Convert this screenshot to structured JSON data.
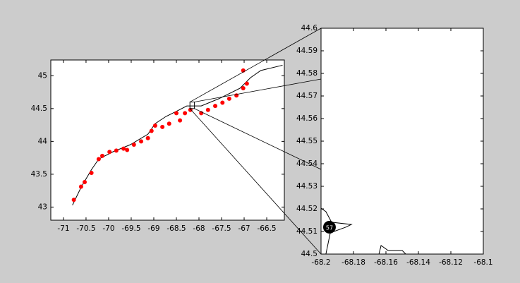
{
  "chart_data": [
    {
      "type": "map",
      "xlim": [
        -71.28,
        -66.11
      ],
      "ylim": [
        42.8,
        45.24
      ],
      "xticks": [
        -71,
        -70.5,
        -70,
        -69.5,
        -69,
        -68.5,
        -68,
        -67.5,
        -67,
        -66.5
      ],
      "yticks": [
        43,
        43.5,
        44,
        44.5,
        45
      ],
      "series": [
        {
          "mode": "line",
          "color": "#000000",
          "x": [
            -70.8,
            -70.61,
            -70.38,
            -70.22,
            -69.91,
            -69.52,
            -69.13,
            -68.97,
            -68.73,
            -68.58,
            -68.27,
            -67.95,
            -67.56,
            -67.09,
            -66.86,
            -66.63,
            -66.15
          ],
          "values": [
            43.03,
            43.3,
            43.57,
            43.73,
            43.84,
            43.95,
            44.11,
            44.27,
            44.38,
            44.43,
            44.54,
            44.54,
            44.65,
            44.81,
            44.97,
            45.08,
            45.16
          ]
        },
        {
          "mode": "scatter",
          "color": "#ff0000",
          "x": [
            -70.77,
            -70.61,
            -70.53,
            -70.38,
            -70.22,
            -70.14,
            -69.98,
            -69.83,
            -69.67,
            -69.59,
            -69.44,
            -69.28,
            -69.13,
            -69.05,
            -68.97,
            -68.81,
            -68.66,
            -68.5,
            -68.42,
            -68.31,
            -68.19,
            -67.95,
            -67.8,
            -67.64,
            -67.48,
            -67.33,
            -67.17,
            -67.02,
            -66.94,
            -67.02
          ],
          "values": [
            43.11,
            43.31,
            43.38,
            43.52,
            43.73,
            43.78,
            43.84,
            43.86,
            43.89,
            43.87,
            43.95,
            44.0,
            44.05,
            44.16,
            44.24,
            44.22,
            44.27,
            44.43,
            44.32,
            44.43,
            44.48,
            44.43,
            44.48,
            44.54,
            44.59,
            44.65,
            44.7,
            44.81,
            44.88,
            45.08
          ]
        }
      ]
    },
    {
      "type": "map",
      "xlim": [
        -68.2,
        -68.1
      ],
      "ylim": [
        44.5,
        44.6
      ],
      "xticks": [
        -68.2,
        -68.18,
        -68.16,
        -68.14,
        -68.12,
        -68.1
      ],
      "yticks": [
        44.5,
        44.51,
        44.52,
        44.53,
        44.54,
        44.55,
        44.56,
        44.57,
        44.58,
        44.59,
        44.6
      ],
      "series": [
        {
          "mode": "line",
          "color": "#000000",
          "x": [
            -68.2,
            -68.197,
            -68.1935,
            -68.1813,
            -68.1848,
            -68.1943,
            -68.197
          ],
          "values": [
            44.5203,
            44.5188,
            44.5141,
            44.5131,
            44.5119,
            44.5094,
            44.5
          ]
        },
        {
          "mode": "line",
          "color": "#000000",
          "x": [
            -68.1643,
            -68.163,
            -68.1587,
            -68.15,
            -68.1478
          ],
          "values": [
            44.5,
            44.5038,
            44.5016,
            44.5016,
            44.5
          ]
        }
      ],
      "annotations": [
        {
          "text": "57",
          "x": -68.1948,
          "y": 44.5119
        }
      ]
    }
  ]
}
